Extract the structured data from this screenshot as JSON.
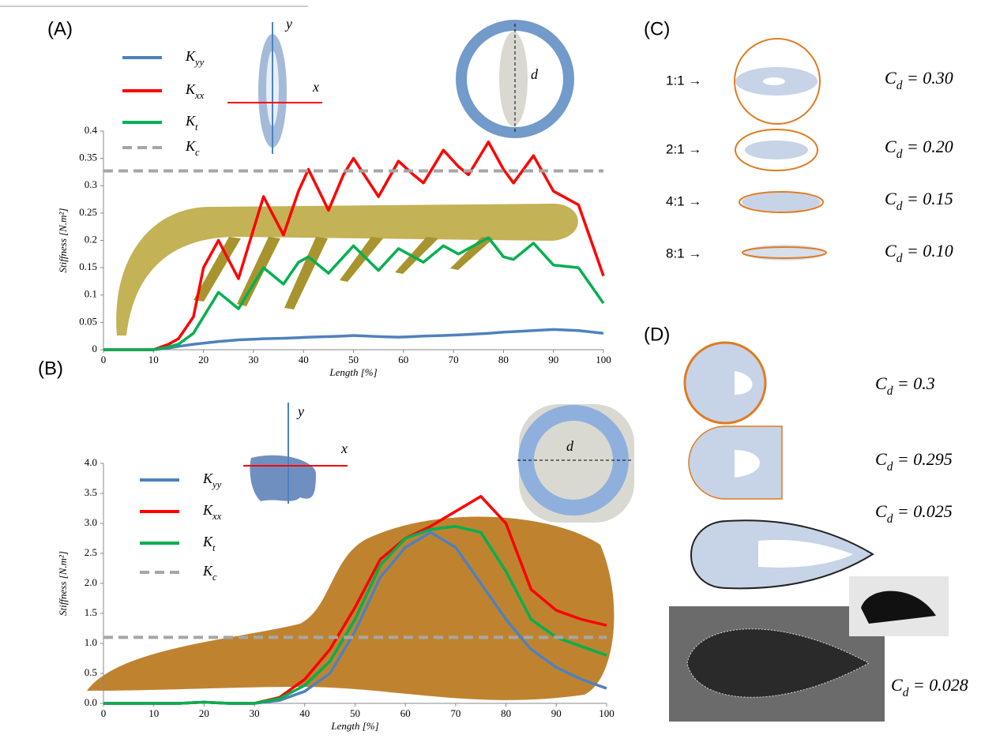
{
  "chart_data": [
    {
      "type": "line",
      "panel_label": "(A)",
      "x_label": "Length [%]",
      "y_label": "Stiffness [N.m²]",
      "axis_labels": [
        "x",
        "y",
        "d"
      ],
      "x": [
        0,
        5,
        10,
        13,
        15,
        18,
        20,
        23,
        27,
        30,
        32,
        36,
        39,
        41,
        45,
        48,
        50,
        55,
        59,
        62,
        64,
        68,
        71,
        73,
        77,
        80,
        82,
        86,
        90,
        95,
        100
      ],
      "series": [
        {
          "name": "Kyy",
          "color": "#4f81bd",
          "values": [
            0,
            0,
            0,
            0.003,
            0.006,
            0.01,
            0.012,
            0.015,
            0.018,
            0.019,
            0.02,
            0.021,
            0.022,
            0.023,
            0.024,
            0.025,
            0.026,
            0.024,
            0.023,
            0.024,
            0.025,
            0.026,
            0.027,
            0.028,
            0.03,
            0.032,
            0.033,
            0.035,
            0.037,
            0.035,
            0.03
          ]
        },
        {
          "name": "Kxx",
          "color": "#ff0000",
          "values": [
            0,
            0,
            0,
            0.01,
            0.02,
            0.06,
            0.15,
            0.2,
            0.13,
            0.22,
            0.28,
            0.21,
            0.29,
            0.33,
            0.255,
            0.32,
            0.35,
            0.28,
            0.345,
            0.32,
            0.305,
            0.365,
            0.335,
            0.32,
            0.38,
            0.33,
            0.305,
            0.355,
            0.29,
            0.265,
            0.135
          ]
        },
        {
          "name": "Kt",
          "color": "#00b050",
          "values": [
            0,
            0,
            0,
            0.005,
            0.01,
            0.03,
            0.06,
            0.105,
            0.075,
            0.12,
            0.15,
            0.12,
            0.16,
            0.17,
            0.14,
            0.17,
            0.19,
            0.145,
            0.185,
            0.17,
            0.16,
            0.19,
            0.175,
            0.185,
            0.205,
            0.17,
            0.165,
            0.195,
            0.155,
            0.15,
            0.085
          ]
        },
        {
          "name": "Kc",
          "color": "#a6a6a6",
          "dashed": true,
          "value": 0.327
        }
      ],
      "xlim": [
        0,
        100
      ],
      "ylim": [
        0,
        0.4
      ],
      "xticks": [
        0,
        10,
        20,
        30,
        40,
        50,
        60,
        70,
        80,
        90,
        100
      ],
      "yticks": [
        0,
        0.05,
        0.1,
        0.15,
        0.2,
        0.25,
        0.3,
        0.35,
        0.4
      ]
    },
    {
      "type": "line",
      "panel_label": "(B)",
      "x_label": "Length [%]",
      "y_label": "Stiffness [N.m²]",
      "axis_labels": [
        "x",
        "y",
        "d"
      ],
      "x": [
        0,
        5,
        10,
        15,
        20,
        25,
        30,
        35,
        40,
        45,
        50,
        55,
        60,
        65,
        70,
        75,
        80,
        85,
        90,
        95,
        100
      ],
      "series": [
        {
          "name": "Kyy",
          "color": "#4f81bd",
          "values": [
            0,
            0,
            0,
            0,
            0.02,
            0,
            0,
            0.05,
            0.2,
            0.5,
            1.2,
            2.1,
            2.6,
            2.85,
            2.6,
            2.0,
            1.4,
            0.9,
            0.6,
            0.4,
            0.25
          ]
        },
        {
          "name": "Kxx",
          "color": "#ff0000",
          "values": [
            0,
            0,
            0,
            0,
            0.02,
            0,
            0,
            0.1,
            0.4,
            0.9,
            1.6,
            2.4,
            2.75,
            2.95,
            3.2,
            3.45,
            3.0,
            1.9,
            1.55,
            1.4,
            1.3
          ]
        },
        {
          "name": "Kt",
          "color": "#00b050",
          "values": [
            0,
            0,
            0,
            0,
            0.02,
            0,
            0,
            0.08,
            0.3,
            0.7,
            1.4,
            2.3,
            2.75,
            2.9,
            2.95,
            2.85,
            2.2,
            1.4,
            1.1,
            0.95,
            0.8
          ]
        },
        {
          "name": "Kc",
          "color": "#a6a6a6",
          "dashed": true,
          "value": 1.1
        }
      ],
      "xlim": [
        0,
        100
      ],
      "ylim": [
        0,
        4
      ],
      "xticks": [
        0,
        10,
        20,
        30,
        40,
        50,
        60,
        70,
        80,
        90,
        100
      ],
      "yticks": [
        {
          "value": 0,
          "label": "0.0"
        },
        0.5,
        {
          "value": 1,
          "label": "1.0"
        },
        1.5,
        {
          "value": 2,
          "label": "2.0"
        },
        2.5,
        {
          "value": 3,
          "label": "3.0"
        },
        3.5,
        {
          "value": 4,
          "label": "4.0"
        }
      ]
    }
  ],
  "panel_c": {
    "label": "(C)",
    "rows": [
      {
        "ratio": "1:1 →",
        "cd": "Cd = 0.30"
      },
      {
        "ratio": "2:1 →",
        "cd": "Cd = 0.20"
      },
      {
        "ratio": "4:1 →",
        "cd": "Cd = 0.15"
      },
      {
        "ratio": "8:1 →",
        "cd": "Cd = 0.10"
      }
    ]
  },
  "panel_d": {
    "label": "(D)",
    "cd": [
      "Cd = 0.3",
      "Cd = 0.295",
      "Cd = 0.025",
      "Cd = 0.028"
    ]
  }
}
